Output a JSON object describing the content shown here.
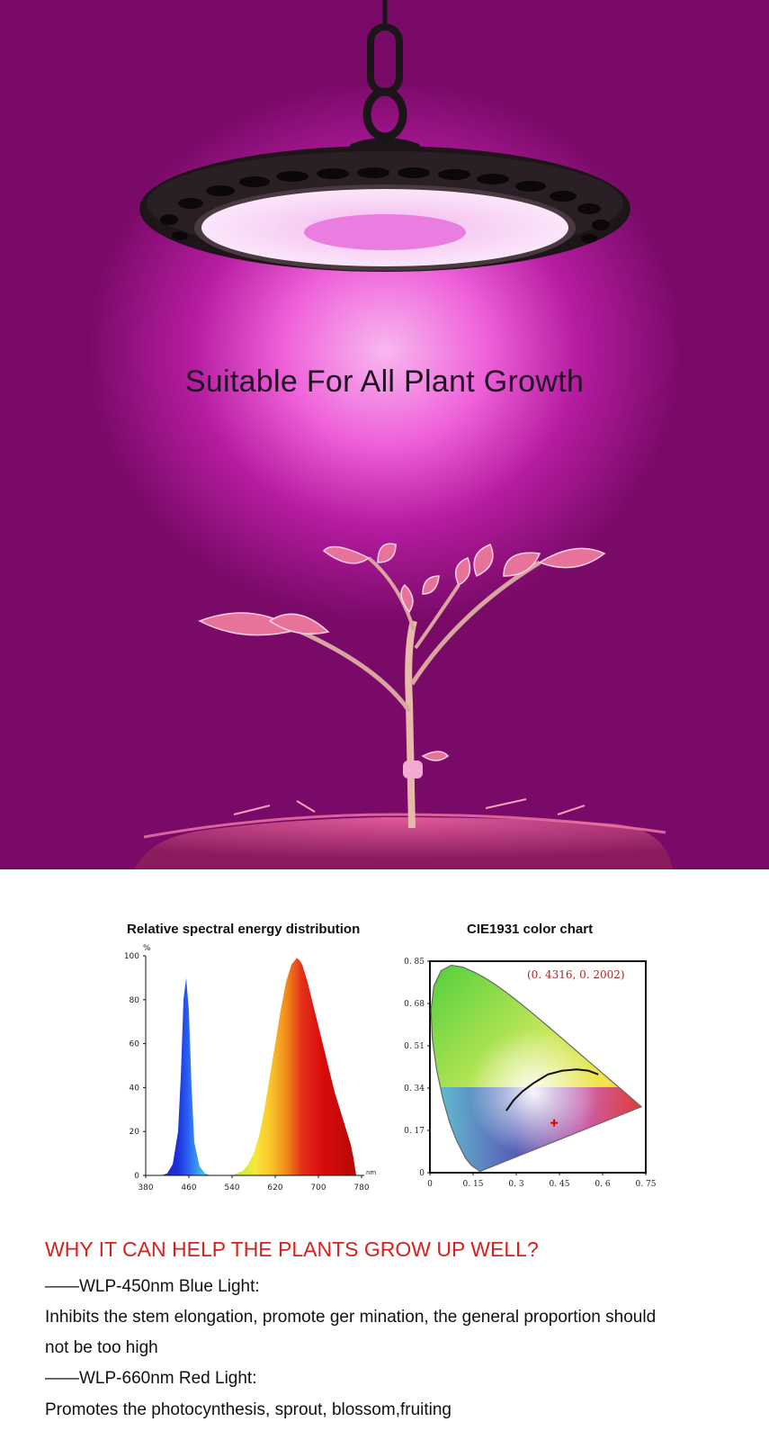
{
  "hero": {
    "title": "Suitable For All Plant Growth"
  },
  "charts": {
    "spectral": {
      "title": "Relative spectral energy distribution",
      "y_unit": "%",
      "x_unit": "nm",
      "x_ticks": [
        "380",
        "460",
        "540",
        "620",
        "700",
        "780"
      ],
      "y_ticks": [
        "0",
        "20",
        "40",
        "60",
        "80",
        "100"
      ]
    },
    "cie": {
      "title": "CIE1931 color chart",
      "coordinate_label": "(0. 4316,  0. 2002)",
      "x_ticks": [
        "0",
        "0. 15",
        "0. 3",
        "0. 45",
        "0. 6",
        "0. 75"
      ],
      "y_ticks": [
        "0",
        "0. 17",
        "0. 34",
        "0. 51",
        "0. 68",
        "0. 85"
      ]
    }
  },
  "chart_data": [
    {
      "type": "area",
      "title": "Relative spectral energy distribution",
      "xlabel": "nm",
      "ylabel": "%",
      "xlim": [
        380,
        780
      ],
      "ylim": [
        0,
        100
      ],
      "series": [
        {
          "x": [
            380,
            410,
            420,
            430,
            440,
            445,
            450,
            455,
            460,
            465,
            470,
            480,
            490,
            500,
            520,
            540,
            560,
            570,
            580,
            590,
            600,
            610,
            620,
            630,
            640,
            650,
            660,
            665,
            670,
            680,
            690,
            700,
            710,
            720,
            730,
            740,
            750,
            760,
            765,
            770
          ],
          "values": [
            0,
            0,
            1,
            5,
            20,
            45,
            80,
            90,
            75,
            40,
            15,
            4,
            1,
            0,
            0,
            0,
            2,
            5,
            10,
            18,
            30,
            45,
            60,
            75,
            88,
            96,
            99,
            98,
            96,
            88,
            78,
            68,
            58,
            48,
            38,
            30,
            22,
            14,
            8,
            0
          ]
        }
      ]
    },
    {
      "type": "scatter",
      "title": "CIE1931 color chart",
      "xlim": [
        0,
        0.75
      ],
      "ylim": [
        0,
        0.85
      ],
      "point": {
        "x": 0.4316,
        "y": 0.2002
      }
    }
  ],
  "text": {
    "heading": "WHY IT CAN HELP THE PLANTS GROW UP WELL?",
    "blue_title": "——WLP-450nm Blue Light:",
    "blue_desc_1": "Inhibits the stem elongation, promote ger mination, the general proportion should",
    "blue_desc_2": "not be too high",
    "red_title": "——WLP-660nm Red Light:",
    "red_desc": "Promotes the photocynthesis, sprout, blossom,fruiting"
  },
  "colors": {
    "hero_bg": "#7a0a68",
    "hero_glow": "#f8b8ef",
    "heading_red": "#d7211f",
    "blue_peak": "#1b2fd8",
    "red_peak": "#d80a0a"
  }
}
